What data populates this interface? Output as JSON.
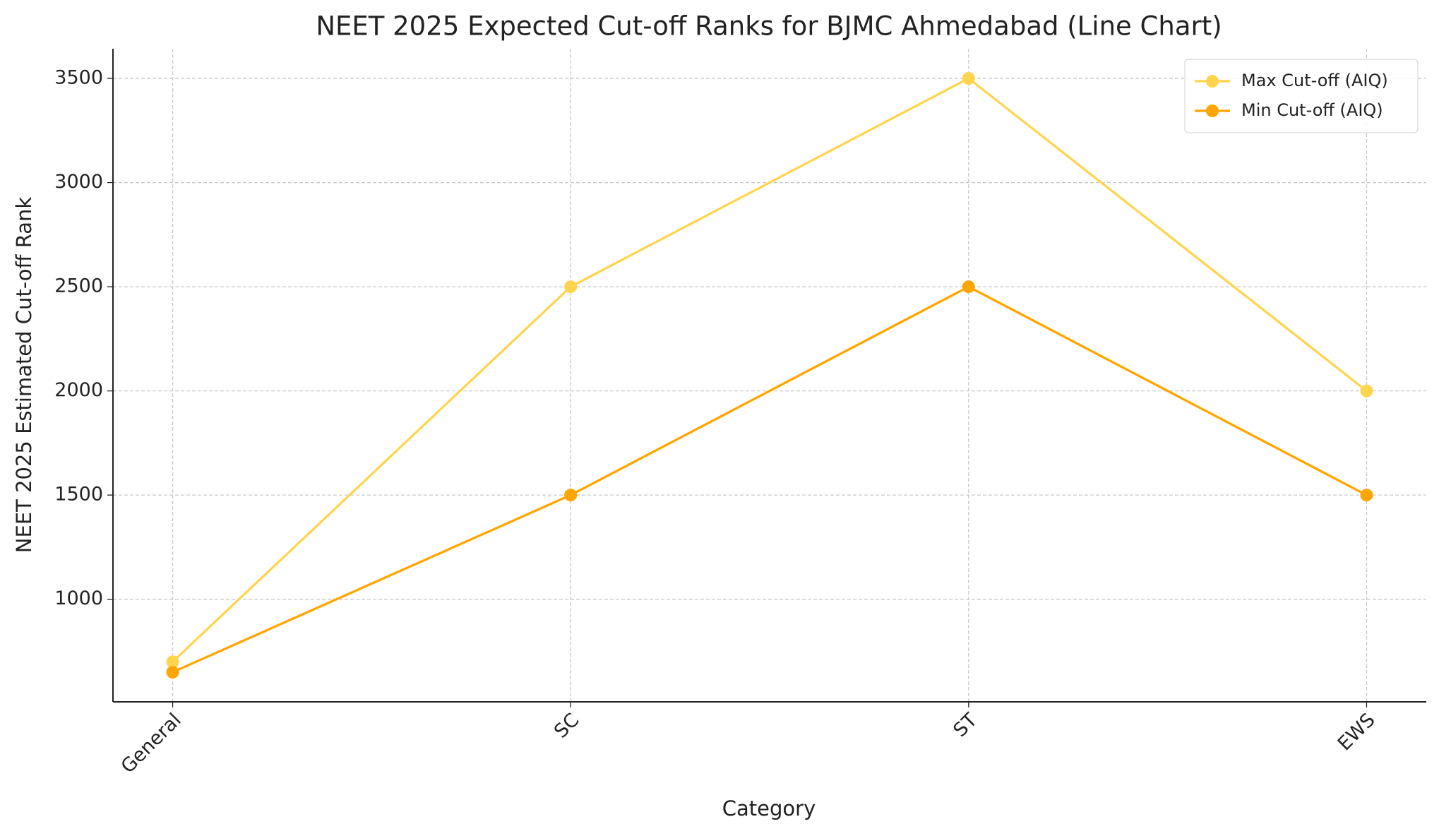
{
  "chart_data": {
    "type": "line",
    "title": "NEET 2025 Expected Cut-off Ranks for BJMC Ahmedabad (Line Chart)",
    "x_label": "Category",
    "y_label": "NEET 2025 Estimated Cut-off Rank",
    "categories": [
      "General",
      "SC",
      "ST",
      "EWS"
    ],
    "series": [
      {
        "name": "Max Cut-off (AIQ)",
        "color": "#ffd54f",
        "values": [
          700,
          2500,
          3500,
          2000
        ]
      },
      {
        "name": "Min Cut-off (AIQ)",
        "color": "#ffa500",
        "values": [
          650,
          1500,
          2500,
          1500
        ]
      }
    ],
    "ylim": [
      507.5,
      3642.5
    ],
    "yticks": [
      1000,
      1500,
      2000,
      2500,
      3000,
      3500
    ],
    "grid": true,
    "legend": "upper right"
  }
}
